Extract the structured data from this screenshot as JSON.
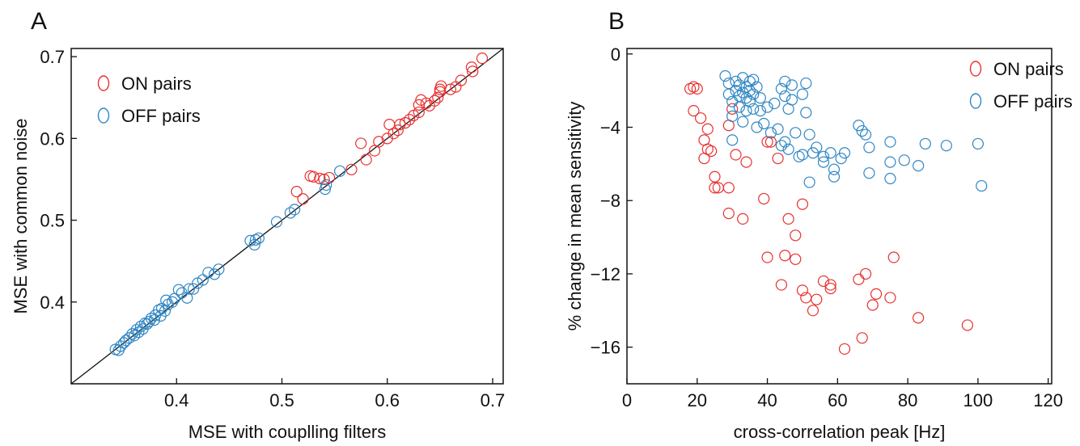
{
  "chart_data": [
    {
      "type": "scatter",
      "panel_label": "A",
      "xlabel": "MSE with couplling filters",
      "ylabel": "MSE with common noise",
      "xlim": [
        0.3,
        0.71
      ],
      "ylim": [
        0.3,
        0.71
      ],
      "xticks": [
        0.4,
        0.5,
        0.6,
        0.7
      ],
      "yticks": [
        0.4,
        0.5,
        0.6,
        0.7
      ],
      "xtick_labels": [
        "0.4",
        "0.5",
        "0.6",
        "0.7"
      ],
      "ytick_labels": [
        "0.4",
        "0.5",
        "0.6",
        "0.7"
      ],
      "identity_line": true,
      "grid": false,
      "legend_position": "top-left",
      "series": [
        {
          "name": "ON pairs",
          "color": "#e8302f",
          "points": [
            [
              0.69,
              0.698
            ],
            [
              0.68,
              0.687
            ],
            [
              0.681,
              0.682
            ],
            [
              0.67,
              0.671
            ],
            [
              0.665,
              0.663
            ],
            [
              0.66,
              0.66
            ],
            [
              0.651,
              0.664
            ],
            [
              0.65,
              0.66
            ],
            [
              0.65,
              0.657
            ],
            [
              0.648,
              0.65
            ],
            [
              0.645,
              0.646
            ],
            [
              0.64,
              0.64
            ],
            [
              0.637,
              0.643
            ],
            [
              0.632,
              0.647
            ],
            [
              0.63,
              0.641
            ],
            [
              0.63,
              0.632
            ],
            [
              0.625,
              0.628
            ],
            [
              0.621,
              0.623
            ],
            [
              0.617,
              0.619
            ],
            [
              0.612,
              0.617
            ],
            [
              0.61,
              0.61
            ],
            [
              0.606,
              0.606
            ],
            [
              0.602,
              0.617
            ],
            [
              0.6,
              0.6
            ],
            [
              0.592,
              0.596
            ],
            [
              0.588,
              0.585
            ],
            [
              0.58,
              0.574
            ],
            [
              0.575,
              0.594
            ],
            [
              0.566,
              0.562
            ],
            [
              0.545,
              0.552
            ],
            [
              0.54,
              0.55
            ],
            [
              0.536,
              0.551
            ],
            [
              0.53,
              0.553
            ],
            [
              0.527,
              0.554
            ],
            [
              0.52,
              0.526
            ],
            [
              0.514,
              0.535
            ]
          ]
        },
        {
          "name": "OFF pairs",
          "color": "#2f86c4",
          "points": [
            [
              0.555,
              0.56
            ],
            [
              0.542,
              0.543
            ],
            [
              0.541,
              0.538
            ],
            [
              0.512,
              0.513
            ],
            [
              0.508,
              0.509
            ],
            [
              0.495,
              0.498
            ],
            [
              0.478,
              0.478
            ],
            [
              0.475,
              0.476
            ],
            [
              0.474,
              0.47
            ],
            [
              0.47,
              0.475
            ],
            [
              0.44,
              0.44
            ],
            [
              0.436,
              0.434
            ],
            [
              0.43,
              0.436
            ],
            [
              0.425,
              0.427
            ],
            [
              0.42,
              0.423
            ],
            [
              0.416,
              0.416
            ],
            [
              0.412,
              0.416
            ],
            [
              0.41,
              0.405
            ],
            [
              0.405,
              0.411
            ],
            [
              0.402,
              0.415
            ],
            [
              0.398,
              0.404
            ],
            [
              0.396,
              0.4
            ],
            [
              0.392,
              0.397
            ],
            [
              0.39,
              0.402
            ],
            [
              0.389,
              0.389
            ],
            [
              0.386,
              0.392
            ],
            [
              0.385,
              0.383
            ],
            [
              0.383,
              0.39
            ],
            [
              0.38,
              0.384
            ],
            [
              0.379,
              0.378
            ],
            [
              0.376,
              0.38
            ],
            [
              0.374,
              0.376
            ],
            [
              0.372,
              0.373
            ],
            [
              0.37,
              0.374
            ],
            [
              0.368,
              0.367
            ],
            [
              0.366,
              0.37
            ],
            [
              0.364,
              0.363
            ],
            [
              0.362,
              0.366
            ],
            [
              0.36,
              0.359
            ],
            [
              0.358,
              0.361
            ],
            [
              0.355,
              0.356
            ],
            [
              0.352,
              0.353
            ],
            [
              0.35,
              0.35
            ],
            [
              0.347,
              0.346
            ],
            [
              0.345,
              0.341
            ],
            [
              0.342,
              0.342
            ]
          ]
        }
      ]
    },
    {
      "type": "scatter",
      "panel_label": "B",
      "xlabel": "cross-correlation peak [Hz]",
      "ylabel": "% change in mean sensitivity",
      "xlim": [
        0,
        121
      ],
      "ylim": [
        -18,
        0.3
      ],
      "xticks": [
        0,
        20,
        40,
        60,
        80,
        100,
        120
      ],
      "yticks": [
        0,
        -4,
        -8,
        -12,
        -16
      ],
      "xtick_labels": [
        "0",
        "20",
        "40",
        "60",
        "80",
        "100",
        "120"
      ],
      "ytick_labels": [
        "0",
        "−4",
        "−8",
        "−12",
        "−16"
      ],
      "grid": false,
      "legend_position": "top-right",
      "series": [
        {
          "name": "ON pairs",
          "color": "#e8302f",
          "points": [
            [
              18,
              -1.9
            ],
            [
              19,
              -1.8
            ],
            [
              20,
              -1.9
            ],
            [
              19,
              -3.1
            ],
            [
              21,
              -3.5
            ],
            [
              22,
              -4.7
            ],
            [
              23,
              -4.1
            ],
            [
              23,
              -5.2
            ],
            [
              22,
              -5.7
            ],
            [
              24,
              -5.3
            ],
            [
              25,
              -6.7
            ],
            [
              25,
              -7.3
            ],
            [
              26,
              -7.3
            ],
            [
              29,
              -7.3
            ],
            [
              29,
              -8.7
            ],
            [
              30,
              -3.0
            ],
            [
              29,
              -3.9
            ],
            [
              31,
              -5.5
            ],
            [
              33,
              -9.0
            ],
            [
              34,
              -5.9
            ],
            [
              39,
              -7.9
            ],
            [
              40,
              -4.8
            ],
            [
              41,
              -4.8
            ],
            [
              40,
              -11.1
            ],
            [
              43,
              -5.7
            ],
            [
              44,
              -12.6
            ],
            [
              45,
              -11.0
            ],
            [
              46,
              -9.0
            ],
            [
              48,
              -9.9
            ],
            [
              48,
              -11.2
            ],
            [
              50,
              -8.2
            ],
            [
              50,
              -12.9
            ],
            [
              51,
              -13.3
            ],
            [
              53,
              -14.0
            ],
            [
              54,
              -13.4
            ],
            [
              56,
              -12.4
            ],
            [
              58,
              -12.8
            ],
            [
              58,
              -12.6
            ],
            [
              62,
              -16.1
            ],
            [
              66,
              -12.3
            ],
            [
              67,
              -15.5
            ],
            [
              68,
              -12.0
            ],
            [
              70,
              -13.7
            ],
            [
              71,
              -13.1
            ],
            [
              75,
              -13.3
            ],
            [
              76,
              -11.1
            ],
            [
              83,
              -14.4
            ],
            [
              97,
              -14.8
            ]
          ]
        },
        {
          "name": "OFF pairs",
          "color": "#2f86c4",
          "points": [
            [
              28,
              -1.2
            ],
            [
              29,
              -1.6
            ],
            [
              29,
              -2.2
            ],
            [
              30,
              -2.6
            ],
            [
              30,
              -3.4
            ],
            [
              30,
              -4.7
            ],
            [
              31,
              -1.5
            ],
            [
              31,
              -2.0
            ],
            [
              32,
              -1.7
            ],
            [
              32,
              -2.3
            ],
            [
              32,
              -2.9
            ],
            [
              33,
              -1.3
            ],
            [
              33,
              -2.1
            ],
            [
              33,
              -3.7
            ],
            [
              34,
              -1.8
            ],
            [
              34,
              -2.4
            ],
            [
              34,
              -3.1
            ],
            [
              35,
              -1.5
            ],
            [
              35,
              -2.0
            ],
            [
              35,
              -2.6
            ],
            [
              36,
              -1.4
            ],
            [
              36,
              -2.2
            ],
            [
              36,
              -3.0
            ],
            [
              37,
              -1.8
            ],
            [
              37,
              -4.0
            ],
            [
              38,
              -3.1
            ],
            [
              38,
              -2.4
            ],
            [
              39,
              -3.8
            ],
            [
              40,
              -2.9
            ],
            [
              41,
              -4.3
            ],
            [
              42,
              -2.7
            ],
            [
              43,
              -4.1
            ],
            [
              44,
              -1.9
            ],
            [
              44,
              -5.0
            ],
            [
              45,
              -1.5
            ],
            [
              45,
              -2.3
            ],
            [
              45,
              -4.8
            ],
            [
              46,
              -3.0
            ],
            [
              46,
              -5.2
            ],
            [
              47,
              -1.7
            ],
            [
              47,
              -2.5
            ],
            [
              48,
              -4.3
            ],
            [
              49,
              -5.6
            ],
            [
              50,
              -2.2
            ],
            [
              50,
              -5.5
            ],
            [
              51,
              -1.6
            ],
            [
              51,
              -3.2
            ],
            [
              52,
              -4.4
            ],
            [
              52,
              -7.0
            ],
            [
              53,
              -5.4
            ],
            [
              54,
              -5.1
            ],
            [
              56,
              -5.6
            ],
            [
              56,
              -5.9
            ],
            [
              58,
              -5.4
            ],
            [
              59,
              -6.3
            ],
            [
              59,
              -6.7
            ],
            [
              61,
              -5.7
            ],
            [
              62,
              -5.4
            ],
            [
              66,
              -3.9
            ],
            [
              67,
              -4.2
            ],
            [
              68,
              -4.4
            ],
            [
              69,
              -5.1
            ],
            [
              69,
              -6.5
            ],
            [
              75,
              -4.8
            ],
            [
              75,
              -5.9
            ],
            [
              75,
              -6.8
            ],
            [
              79,
              -5.8
            ],
            [
              83,
              -6.1
            ],
            [
              85,
              -4.9
            ],
            [
              91,
              -5.0
            ],
            [
              100,
              -4.9
            ],
            [
              101,
              -7.2
            ]
          ]
        }
      ]
    }
  ]
}
